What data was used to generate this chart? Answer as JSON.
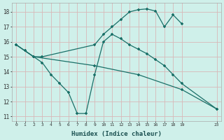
{
  "xlabel": "Humidex (Indice chaleur)",
  "bg_color": "#cff0ea",
  "grid_color": "#d8b8b8",
  "line_color": "#1a7068",
  "xlim": [
    -0.5,
    23.5
  ],
  "ylim": [
    10.7,
    18.6
  ],
  "xtick_labels": [
    "0",
    "1",
    "2",
    "3",
    "4",
    "5",
    "6",
    "7",
    "8",
    "9",
    "10",
    "11",
    "12",
    "13",
    "14",
    "15",
    "16",
    "17",
    "18",
    "19",
    "23"
  ],
  "xtick_vals": [
    0,
    1,
    2,
    3,
    4,
    5,
    6,
    7,
    8,
    9,
    10,
    11,
    12,
    13,
    14,
    15,
    16,
    17,
    18,
    19,
    23
  ],
  "ytick_vals": [
    11,
    12,
    13,
    14,
    15,
    16,
    17,
    18
  ],
  "line_wavy_x": [
    0,
    1,
    2,
    3,
    4,
    5,
    6,
    7,
    8,
    9,
    10,
    11,
    12,
    13,
    14,
    15,
    16,
    17,
    18,
    19,
    23
  ],
  "line_wavy_y": [
    15.8,
    15.4,
    15.0,
    14.6,
    13.8,
    13.2,
    12.6,
    11.2,
    11.2,
    13.8,
    16.0,
    16.5,
    16.2,
    15.8,
    15.5,
    15.2,
    14.8,
    14.4,
    13.8,
    13.2,
    11.5
  ],
  "line_upper_x": [
    0,
    1,
    2,
    3,
    9,
    10,
    11,
    12,
    13,
    14,
    15,
    16,
    17,
    18,
    19
  ],
  "line_upper_y": [
    15.8,
    15.4,
    15.0,
    15.0,
    15.8,
    16.5,
    17.0,
    17.5,
    18.0,
    18.15,
    18.2,
    18.05,
    17.0,
    17.8,
    17.2
  ],
  "line_diag_x": [
    0,
    1,
    2,
    9,
    14,
    19,
    23
  ],
  "line_diag_y": [
    15.8,
    15.4,
    15.0,
    14.4,
    13.8,
    12.8,
    11.5
  ]
}
